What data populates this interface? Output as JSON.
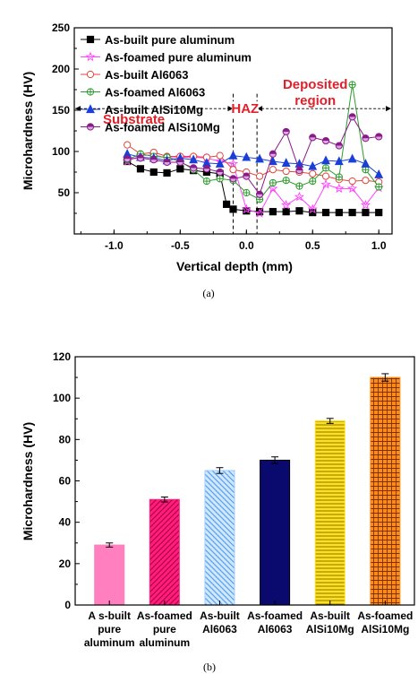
{
  "chart_data": [
    {
      "type": "line",
      "panel_label": "(a)",
      "xlabel": "Vertical depth (mm)",
      "ylabel": "Microhardness (HV)",
      "xlim": [
        -1.3,
        1.1
      ],
      "ylim": [
        0,
        250
      ],
      "xticks": [
        -1.0,
        -0.5,
        0.0,
        0.5,
        1.0
      ],
      "xtick_labels": [
        "-1.0",
        "-0.5",
        "0.0",
        "0.5",
        "1.0"
      ],
      "yticks": [
        50,
        100,
        150,
        200,
        250
      ],
      "ytick_labels": [
        "50",
        "100",
        "150",
        "200",
        "250"
      ],
      "grid": false,
      "legend_position": "top-left",
      "region_boundaries": [
        -0.1,
        0.08
      ],
      "regions": [
        {
          "label": "Substrate",
          "from": -1.3,
          "to": -0.1
        },
        {
          "label": "HAZ",
          "from": -0.1,
          "to": 0.08
        },
        {
          "label": "Deposited region",
          "from": 0.08,
          "to": 1.1
        }
      ],
      "region_arrow_y": 152,
      "series": [
        {
          "name": "As-built pure aluminum",
          "color": "#000000",
          "marker": "square",
          "x": [
            -0.9,
            -0.8,
            -0.7,
            -0.6,
            -0.5,
            -0.4,
            -0.3,
            -0.2,
            -0.15,
            -0.1,
            0.0,
            0.1,
            0.2,
            0.3,
            0.4,
            0.5,
            0.6,
            0.7,
            0.8,
            0.9,
            1.0
          ],
          "y": [
            88,
            79,
            75,
            74,
            79,
            77,
            75,
            73,
            36,
            30,
            28,
            27,
            27,
            27,
            28,
            26,
            26,
            26,
            26,
            26,
            26
          ]
        },
        {
          "name": "As-foamed pure aluminum",
          "color": "#ff44ff",
          "marker": "star",
          "x": [
            -0.9,
            -0.8,
            -0.7,
            -0.6,
            -0.5,
            -0.4,
            -0.3,
            -0.2,
            -0.1,
            0.0,
            0.1,
            0.2,
            0.3,
            0.4,
            0.5,
            0.6,
            0.7,
            0.8,
            0.9,
            1.0
          ],
          "y": [
            88,
            95,
            96,
            92,
            93,
            93,
            92,
            88,
            85,
            30,
            25,
            55,
            35,
            45,
            30,
            60,
            55,
            55,
            35,
            56
          ]
        },
        {
          "name": "As-built Al6063",
          "color": "#e0453a",
          "marker": "circle-open",
          "x": [
            -0.9,
            -0.8,
            -0.7,
            -0.6,
            -0.5,
            -0.4,
            -0.3,
            -0.2,
            -0.1,
            0.0,
            0.1,
            0.2,
            0.3,
            0.4,
            0.5,
            0.6,
            0.7,
            0.8,
            0.9,
            1.0
          ],
          "y": [
            108,
            97,
            99,
            94,
            94,
            94,
            93,
            95,
            78,
            75,
            70,
            78,
            76,
            75,
            73,
            70,
            66,
            64,
            65,
            63
          ]
        },
        {
          "name": "As-foamed Al6063",
          "color": "#2e9a2e",
          "marker": "circle-plus",
          "x": [
            -0.9,
            -0.8,
            -0.7,
            -0.6,
            -0.5,
            -0.4,
            -0.3,
            -0.2,
            -0.1,
            0.0,
            0.1,
            0.2,
            0.3,
            0.4,
            0.5,
            0.6,
            0.7,
            0.8,
            0.9,
            1.0
          ],
          "y": [
            90,
            97,
            94,
            93,
            88,
            78,
            64,
            67,
            65,
            50,
            42,
            62,
            65,
            58,
            64,
            80,
            69,
            181,
            78,
            57
          ]
        },
        {
          "name": "As-built AlSi10Mg",
          "color": "#1a3fd8",
          "marker": "triangle",
          "x": [
            -0.9,
            -0.8,
            -0.7,
            -0.6,
            -0.5,
            -0.4,
            -0.3,
            -0.2,
            -0.1,
            0.0,
            0.1,
            0.2,
            0.3,
            0.4,
            0.5,
            0.6,
            0.7,
            0.8,
            0.9,
            1.0
          ],
          "y": [
            97,
            93,
            92,
            89,
            92,
            90,
            86,
            85,
            95,
            93,
            91,
            88,
            86,
            85,
            82,
            89,
            88,
            91,
            85,
            72
          ]
        },
        {
          "name": "As-foamed AlSi10Mg",
          "color": "#8a1a8a",
          "marker": "circle-half",
          "x": [
            -0.9,
            -0.8,
            -0.7,
            -0.6,
            -0.5,
            -0.4,
            -0.3,
            -0.2,
            -0.1,
            0.0,
            0.1,
            0.2,
            0.3,
            0.4,
            0.5,
            0.6,
            0.7,
            0.8,
            0.9,
            1.0
          ],
          "y": [
            91,
            92,
            90,
            87,
            87,
            80,
            79,
            75,
            67,
            70,
            48,
            97,
            124,
            77,
            117,
            113,
            107,
            142,
            116,
            118
          ]
        }
      ]
    },
    {
      "type": "bar",
      "panel_label": "(b)",
      "xlabel": "",
      "ylabel": "Microhardness (HV)",
      "ylim": [
        0,
        120
      ],
      "yticks": [
        0,
        20,
        40,
        60,
        80,
        100,
        120
      ],
      "ytick_labels": [
        "0",
        "20",
        "40",
        "60",
        "80",
        "100",
        "120"
      ],
      "grid": false,
      "categories": [
        [
          "A s-built",
          "pure",
          "aluminum"
        ],
        [
          "As-foamed",
          "pure",
          "aluminum"
        ],
        [
          "As-built",
          "Al6063"
        ],
        [
          "As-foamed",
          "Al6063"
        ],
        [
          "As-built",
          "AlSi10Mg"
        ],
        [
          "As-foamed",
          "AlSi10Mg"
        ]
      ],
      "values": [
        29,
        51,
        65,
        70,
        89,
        110
      ],
      "errors": [
        1.0,
        1.2,
        1.4,
        1.6,
        1.2,
        1.8
      ],
      "colors": [
        "#ff7fbf",
        "#ff1f7a",
        "#9ecfff",
        "#0a0a6e",
        "#ffe020",
        "#ff8a1a"
      ],
      "patterns": [
        "solid",
        "back-diagonal",
        "forward-diagonal",
        "solid",
        "horizontal",
        "grid"
      ]
    }
  ]
}
